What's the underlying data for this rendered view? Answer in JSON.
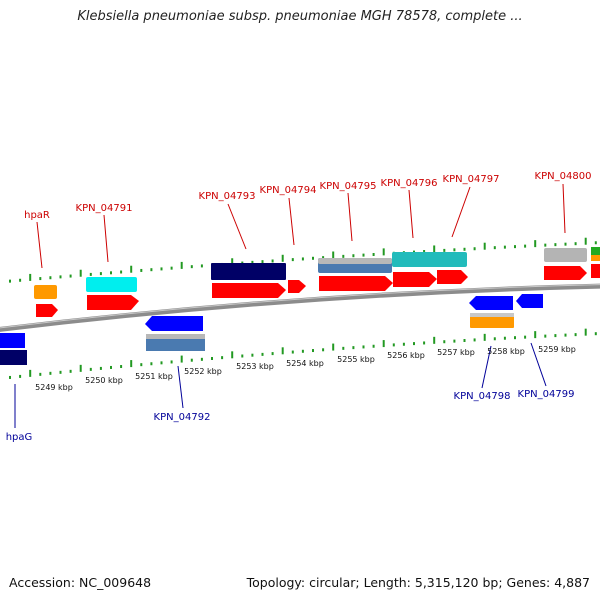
{
  "title": "Klebsiella pneumoniae subsp. pneumoniae MGH 78578, complete ...",
  "footer": {
    "accession": "Accession: NC_009648",
    "topology": "Topology: circular; Length: 5,315,120 bp; Genes: 4,887"
  },
  "colors": {
    "forward_gene": "#ff0000",
    "reverse_gene": "#0000ff",
    "top_label": "#cc0000",
    "bottom_label": "#000099",
    "tick": "#229922",
    "backbone": "#8c8c8c",
    "orange": "#ff9900",
    "cyan": "#00dddd",
    "navy": "#000066",
    "steelblue": "#4a7ab0",
    "silver": "#b4b4b4",
    "teal": "#22bbbb",
    "green": "#22aa22"
  },
  "kbp_labels": [
    "5249 kbp",
    "5250 kbp",
    "5251 kbp",
    "5252 kbp",
    "5253 kbp",
    "5254 kbp",
    "5255 kbp",
    "5256 kbp",
    "5257 kbp",
    "5258 kbp",
    "5259 kbp"
  ],
  "top_gene_labels": [
    "hpaR",
    "KPN_04791",
    "KPN_04793",
    "KPN_04794",
    "KPN_04795",
    "KPN_04796",
    "KPN_04797",
    "KPN_04800"
  ],
  "bottom_gene_labels": [
    "hpaG",
    "KPN_04792",
    "KPN_04798",
    "KPN_04799"
  ]
}
